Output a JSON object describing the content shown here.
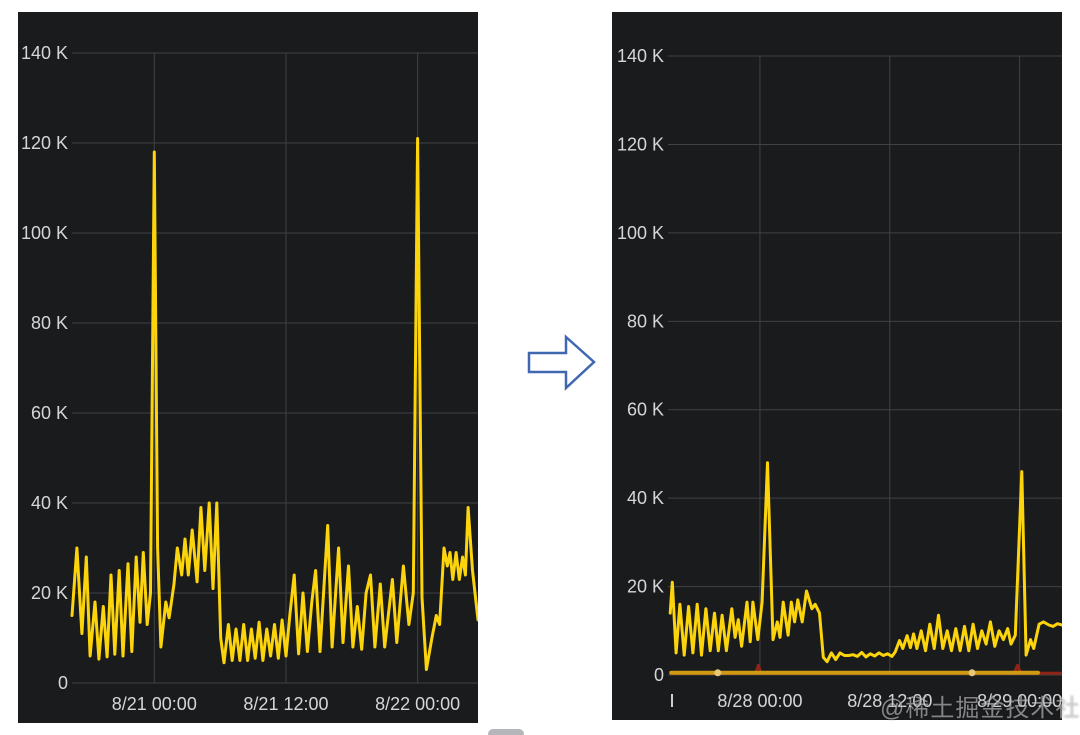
{
  "page": {
    "background": "#ffffff",
    "watermark": "@稀土掘金技术社区"
  },
  "colors": {
    "panel_bg": "#1a1b1d",
    "grid": "#404246",
    "tick_label": "#d5d6d8",
    "series_yellow": "#FCD40B",
    "series_orange": "#D09A12",
    "series_red": "#8E2417",
    "marker_orange": "#E8C878"
  },
  "arrow": {
    "direction": "right",
    "outline_color": "#4068B0",
    "fill_color": "#ffffff"
  },
  "chart_data": [
    {
      "id": "left",
      "type": "line",
      "title": "",
      "xlabel": "",
      "ylabel": "",
      "ylim": [
        0,
        150
      ],
      "x_span_hours": 37,
      "grid": true,
      "legend": "none",
      "y_ticks": [
        {
          "value": 140,
          "label": "140 K"
        },
        {
          "value": 120,
          "label": "120 K"
        },
        {
          "value": 100,
          "label": "100 K"
        },
        {
          "value": 80,
          "label": "80 K"
        },
        {
          "value": 60,
          "label": "60 K"
        },
        {
          "value": 40,
          "label": "40 K"
        },
        {
          "value": 20,
          "label": "20 K"
        },
        {
          "value": 0,
          "label": "0"
        }
      ],
      "x_ticks": [
        {
          "hours": 7.5,
          "label": "8/21 00:00"
        },
        {
          "hours": 19.5,
          "label": "8/21 12:00"
        },
        {
          "hours": 31.5,
          "label": "8/22 00:00"
        }
      ],
      "series": [
        {
          "name": "traffic-before",
          "color": "#FCD40B",
          "width": 3,
          "unit": "K",
          "points": [
            [
              0,
              15
            ],
            [
              0.45,
              30
            ],
            [
              0.9,
              11
            ],
            [
              1.3,
              28
            ],
            [
              1.65,
              6
            ],
            [
              2.1,
              18
            ],
            [
              2.45,
              5.3
            ],
            [
              2.85,
              17
            ],
            [
              3.2,
              5.8
            ],
            [
              3.55,
              24
            ],
            [
              3.9,
              6.4
            ],
            [
              4.3,
              25
            ],
            [
              4.65,
              6
            ],
            [
              5.1,
              26.5
            ],
            [
              5.45,
              7
            ],
            [
              5.85,
              28
            ],
            [
              6.2,
              13.5
            ],
            [
              6.5,
              29
            ],
            [
              6.85,
              13
            ],
            [
              7.15,
              20
            ],
            [
              7.5,
              118
            ],
            [
              7.8,
              30
            ],
            [
              8.1,
              8
            ],
            [
              8.55,
              18
            ],
            [
              8.85,
              14.5
            ],
            [
              9.3,
              22
            ],
            [
              9.6,
              30
            ],
            [
              10.0,
              24
            ],
            [
              10.3,
              32
            ],
            [
              10.6,
              24
            ],
            [
              10.95,
              34
            ],
            [
              11.4,
              22.5
            ],
            [
              11.75,
              39
            ],
            [
              12.1,
              25
            ],
            [
              12.5,
              40
            ],
            [
              12.85,
              21
            ],
            [
              13.2,
              40
            ],
            [
              13.55,
              10
            ],
            [
              13.85,
              4.5
            ],
            [
              14.25,
              13
            ],
            [
              14.6,
              5
            ],
            [
              14.95,
              12
            ],
            [
              15.3,
              5
            ],
            [
              15.65,
              13
            ],
            [
              16.0,
              5
            ],
            [
              16.35,
              12
            ],
            [
              16.7,
              5.5
            ],
            [
              17.05,
              13.5
            ],
            [
              17.4,
              5
            ],
            [
              17.75,
              12
            ],
            [
              18.1,
              6
            ],
            [
              18.45,
              13
            ],
            [
              18.8,
              5.5
            ],
            [
              19.15,
              14
            ],
            [
              19.5,
              6
            ],
            [
              19.85,
              15
            ],
            [
              20.25,
              24
            ],
            [
              20.65,
              6.5
            ],
            [
              21.05,
              20
            ],
            [
              21.45,
              7
            ],
            [
              21.85,
              18
            ],
            [
              22.2,
              25
            ],
            [
              22.6,
              7
            ],
            [
              23.3,
              35
            ],
            [
              23.7,
              8
            ],
            [
              24.3,
              30
            ],
            [
              24.7,
              9
            ],
            [
              25.2,
              26
            ],
            [
              25.6,
              8
            ],
            [
              26.0,
              17
            ],
            [
              26.4,
              7.5
            ],
            [
              26.8,
              20
            ],
            [
              27.2,
              24
            ],
            [
              27.6,
              8
            ],
            [
              28.1,
              22
            ],
            [
              28.5,
              8
            ],
            [
              29.2,
              23
            ],
            [
              29.6,
              9
            ],
            [
              30.2,
              26
            ],
            [
              30.7,
              13
            ],
            [
              31.1,
              20
            ],
            [
              31.5,
              121
            ],
            [
              31.9,
              19
            ],
            [
              32.3,
              3
            ],
            [
              32.8,
              10
            ],
            [
              33.2,
              15
            ],
            [
              33.5,
              13
            ],
            [
              33.9,
              30
            ],
            [
              34.2,
              26
            ],
            [
              34.45,
              29
            ],
            [
              34.7,
              23
            ],
            [
              35.0,
              29
            ],
            [
              35.3,
              23
            ],
            [
              35.6,
              28
            ],
            [
              35.85,
              24
            ],
            [
              36.1,
              39
            ],
            [
              36.5,
              25
            ],
            [
              37.0,
              14
            ]
          ]
        }
      ]
    },
    {
      "id": "right",
      "type": "line",
      "title": "",
      "xlabel": "",
      "ylabel": "",
      "ylim": [
        0,
        150
      ],
      "x_span_hours": 36.4,
      "grid": true,
      "legend": "none",
      "y_ticks": [
        {
          "value": 140,
          "label": "140 K"
        },
        {
          "value": 120,
          "label": "120 K"
        },
        {
          "value": 100,
          "label": "100 K"
        },
        {
          "value": 80,
          "label": "80 K"
        },
        {
          "value": 60,
          "label": "60 K"
        },
        {
          "value": 40,
          "label": "40 K"
        },
        {
          "value": 20,
          "label": "20 K"
        },
        {
          "value": 0,
          "label": "0"
        }
      ],
      "x_ticks": [
        {
          "hours": 8.5,
          "label": "8/28 00:00"
        },
        {
          "hours": 20.5,
          "label": "8/28 12:00"
        },
        {
          "hours": 32.5,
          "label": "8/29 00:00"
        }
      ],
      "series": [
        {
          "name": "alert-flat",
          "color": "#8E2417",
          "width": 3,
          "unit": "K",
          "points": [
            [
              0.3,
              0.4
            ],
            [
              8.1,
              0.4
            ],
            [
              8.35,
              2.2
            ],
            [
              8.6,
              0.4
            ],
            [
              32.0,
              0.4
            ],
            [
              32.3,
              2.2
            ],
            [
              32.6,
              0.4
            ],
            [
              36.3,
              0.4
            ]
          ]
        },
        {
          "name": "baseline-flat",
          "color": "#D09A12",
          "width": 4,
          "unit": "K",
          "points": [
            [
              0.3,
              0.5
            ],
            [
              34.2,
              0.5
            ]
          ],
          "markers_hours": [
            4.6,
            28.1
          ],
          "marker_color": "#E8C878"
        },
        {
          "name": "traffic-after",
          "color": "#FCD40B",
          "width": 3,
          "unit": "K",
          "points": [
            [
              0.2,
              14
            ],
            [
              0.4,
              21
            ],
            [
              0.75,
              5
            ],
            [
              1.1,
              16
            ],
            [
              1.5,
              4.5
            ],
            [
              1.9,
              15.5
            ],
            [
              2.3,
              5
            ],
            [
              2.7,
              16
            ],
            [
              3.1,
              4.5
            ],
            [
              3.5,
              15
            ],
            [
              3.9,
              5.5
            ],
            [
              4.3,
              14
            ],
            [
              4.65,
              5.5
            ],
            [
              5.0,
              13.5
            ],
            [
              5.4,
              5.5
            ],
            [
              5.9,
              15
            ],
            [
              6.2,
              8.5
            ],
            [
              6.5,
              12.5
            ],
            [
              6.8,
              6.5
            ],
            [
              7.3,
              16.5
            ],
            [
              7.6,
              7.5
            ],
            [
              7.85,
              16.5
            ],
            [
              8.3,
              8
            ],
            [
              8.7,
              16.5
            ],
            [
              9.2,
              48
            ],
            [
              9.7,
              8
            ],
            [
              10.1,
              12
            ],
            [
              10.35,
              8.5
            ],
            [
              10.65,
              16.5
            ],
            [
              11.1,
              9
            ],
            [
              11.4,
              16.5
            ],
            [
              11.7,
              12
            ],
            [
              12.0,
              17
            ],
            [
              12.4,
              12
            ],
            [
              12.8,
              19
            ],
            [
              13.3,
              15
            ],
            [
              13.6,
              16
            ],
            [
              14.0,
              14
            ],
            [
              14.35,
              4
            ],
            [
              14.7,
              3
            ],
            [
              15.1,
              5
            ],
            [
              15.5,
              3.5
            ],
            [
              15.9,
              5
            ],
            [
              16.3,
              4.4
            ],
            [
              16.7,
              4.4
            ],
            [
              17.1,
              4.6
            ],
            [
              17.5,
              4.2
            ],
            [
              17.9,
              5.1
            ],
            [
              18.3,
              4.1
            ],
            [
              18.7,
              4.8
            ],
            [
              19.1,
              4.3
            ],
            [
              19.5,
              5
            ],
            [
              19.9,
              4.4
            ],
            [
              20.3,
              4.8
            ],
            [
              20.7,
              4.2
            ],
            [
              21.0,
              5.2
            ],
            [
              21.4,
              7.8
            ],
            [
              21.7,
              6
            ],
            [
              22.1,
              8.9
            ],
            [
              22.4,
              6.2
            ],
            [
              22.7,
              9.3
            ],
            [
              23.0,
              6
            ],
            [
              23.4,
              10
            ],
            [
              23.8,
              5.5
            ],
            [
              24.2,
              11.5
            ],
            [
              24.6,
              6
            ],
            [
              25.0,
              13.5
            ],
            [
              25.4,
              6
            ],
            [
              25.8,
              10
            ],
            [
              26.2,
              5.5
            ],
            [
              26.6,
              10.5
            ],
            [
              27.0,
              5.5
            ],
            [
              27.4,
              11
            ],
            [
              27.8,
              5.5
            ],
            [
              28.2,
              11.5
            ],
            [
              28.6,
              6
            ],
            [
              29.0,
              10
            ],
            [
              29.4,
              7
            ],
            [
              29.8,
              12
            ],
            [
              30.2,
              6.5
            ],
            [
              30.6,
              10
            ],
            [
              31.0,
              8
            ],
            [
              31.4,
              10.5
            ],
            [
              31.7,
              7
            ],
            [
              32.1,
              9
            ],
            [
              32.7,
              46
            ],
            [
              33.1,
              4.5
            ],
            [
              33.5,
              8
            ],
            [
              33.8,
              6
            ],
            [
              34.3,
              11.5
            ],
            [
              34.7,
              12
            ],
            [
              35.2,
              11.3
            ],
            [
              35.6,
              11
            ],
            [
              36.0,
              11.6
            ],
            [
              36.4,
              11.3
            ]
          ]
        }
      ]
    }
  ]
}
